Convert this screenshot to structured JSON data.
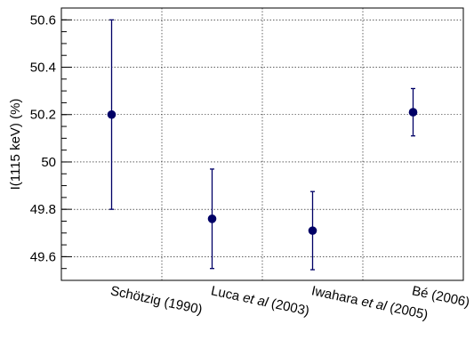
{
  "chart_data": {
    "type": "scatter",
    "title": "",
    "xlabel": "",
    "ylabel": "I(1115 keV) (%)",
    "ylim": [
      49.5,
      50.65
    ],
    "yticks": [
      "49.6",
      "49.8",
      "50",
      "50.2",
      "50.4",
      "50.6"
    ],
    "grid": true,
    "categories": [
      {
        "pre": "Schötzig (1990)",
        "ital": "",
        "post": ""
      },
      {
        "pre": "Luca ",
        "ital": "et al",
        "post": " (2003)"
      },
      {
        "pre": "Iwahara ",
        "ital": "et al",
        "post": " (2005)"
      },
      {
        "pre": "Bé (2006)",
        "ital": "",
        "post": ""
      }
    ],
    "series": [
      {
        "values": [
          50.2,
          49.76,
          49.71,
          50.21
        ],
        "err_low": [
          0.4,
          0.21,
          0.165,
          0.1
        ],
        "err_high": [
          0.4,
          0.21,
          0.165,
          0.1
        ],
        "color": "#000066"
      }
    ]
  }
}
